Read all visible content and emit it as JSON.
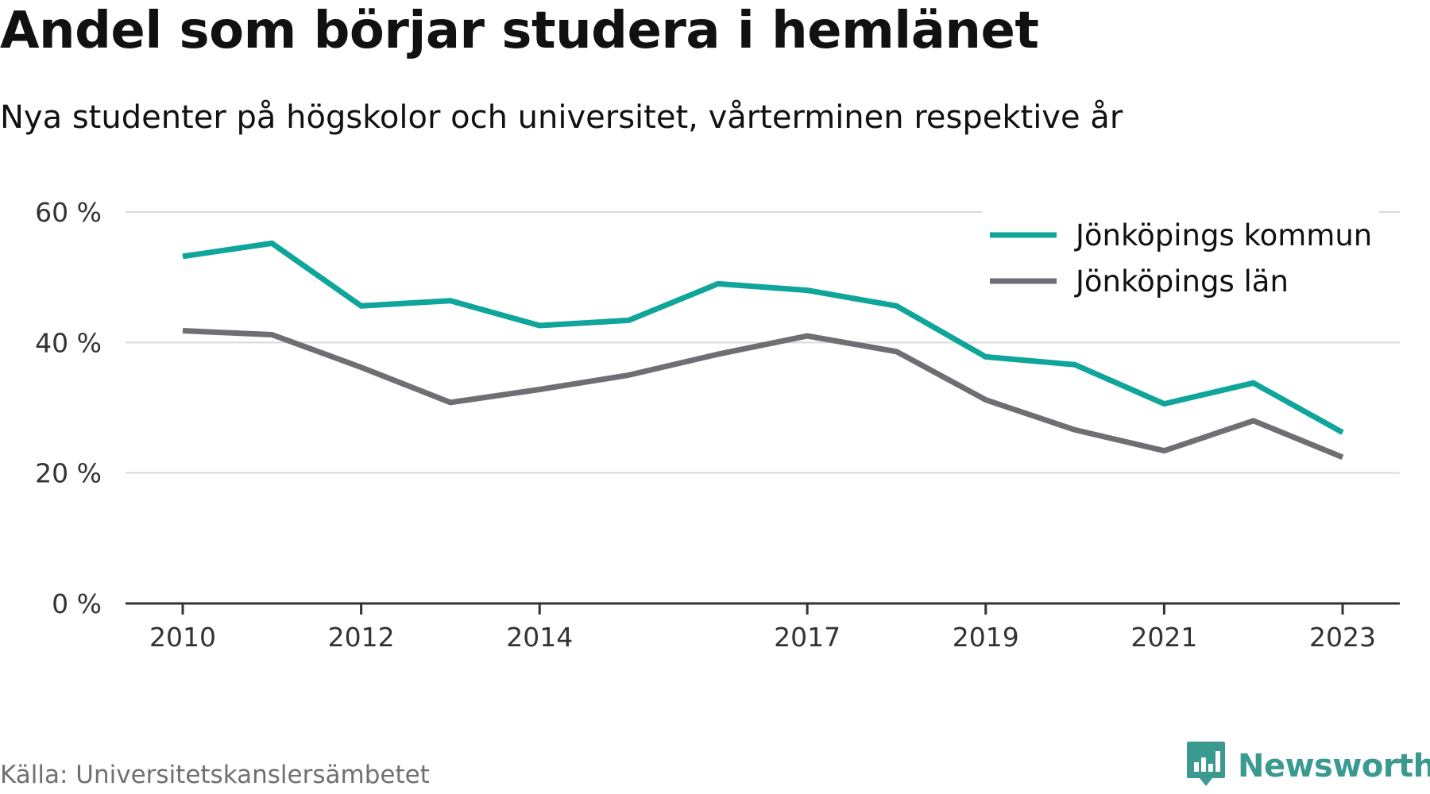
{
  "chart_data": {
    "type": "line",
    "title": "Andel som börjar studera i hemlänet",
    "subtitle": "Nya studenter på högskolor och universitet, vårterminen respektive år",
    "x": [
      2010,
      2011,
      2012,
      2013,
      2014,
      2015,
      2016,
      2017,
      2018,
      2019,
      2020,
      2021,
      2022,
      2023
    ],
    "x_ticks": [
      2010,
      2012,
      2014,
      2017,
      2019,
      2021,
      2023
    ],
    "x_tick_labels": [
      "2010",
      "2012",
      "2014",
      "2017",
      "2019",
      "2021",
      "2023"
    ],
    "y_ticks": [
      0,
      20,
      40,
      60
    ],
    "y_tick_labels": [
      "0 %",
      "20 %",
      "40 %",
      "60 %"
    ],
    "ylim": [
      0,
      60
    ],
    "xlabel": "",
    "ylabel": "",
    "grid": true,
    "legend_position": "top-right",
    "series": [
      {
        "name": "Jönköpings kommun",
        "color": "#0fa59a",
        "values": [
          53.2,
          55.2,
          45.6,
          46.4,
          42.6,
          43.4,
          49.0,
          48.0,
          45.6,
          37.8,
          36.6,
          30.6,
          33.8,
          26.2
        ]
      },
      {
        "name": "Jönköpings län",
        "color": "#6f6e73",
        "values": [
          41.8,
          41.2,
          36.2,
          30.8,
          32.8,
          35.0,
          38.2,
          41.0,
          38.6,
          31.2,
          26.6,
          23.4,
          28.0,
          22.4
        ]
      }
    ]
  },
  "footer": {
    "source": "Källa: Universitetskanslersämbetet",
    "brand": "Newsworthy"
  },
  "colors": {
    "grid": "#d9d9d9",
    "axis": "#333333",
    "brand": "#3a9a8f"
  },
  "icons": {
    "brand_logo": "chat-bubble-bar-chart-icon"
  }
}
